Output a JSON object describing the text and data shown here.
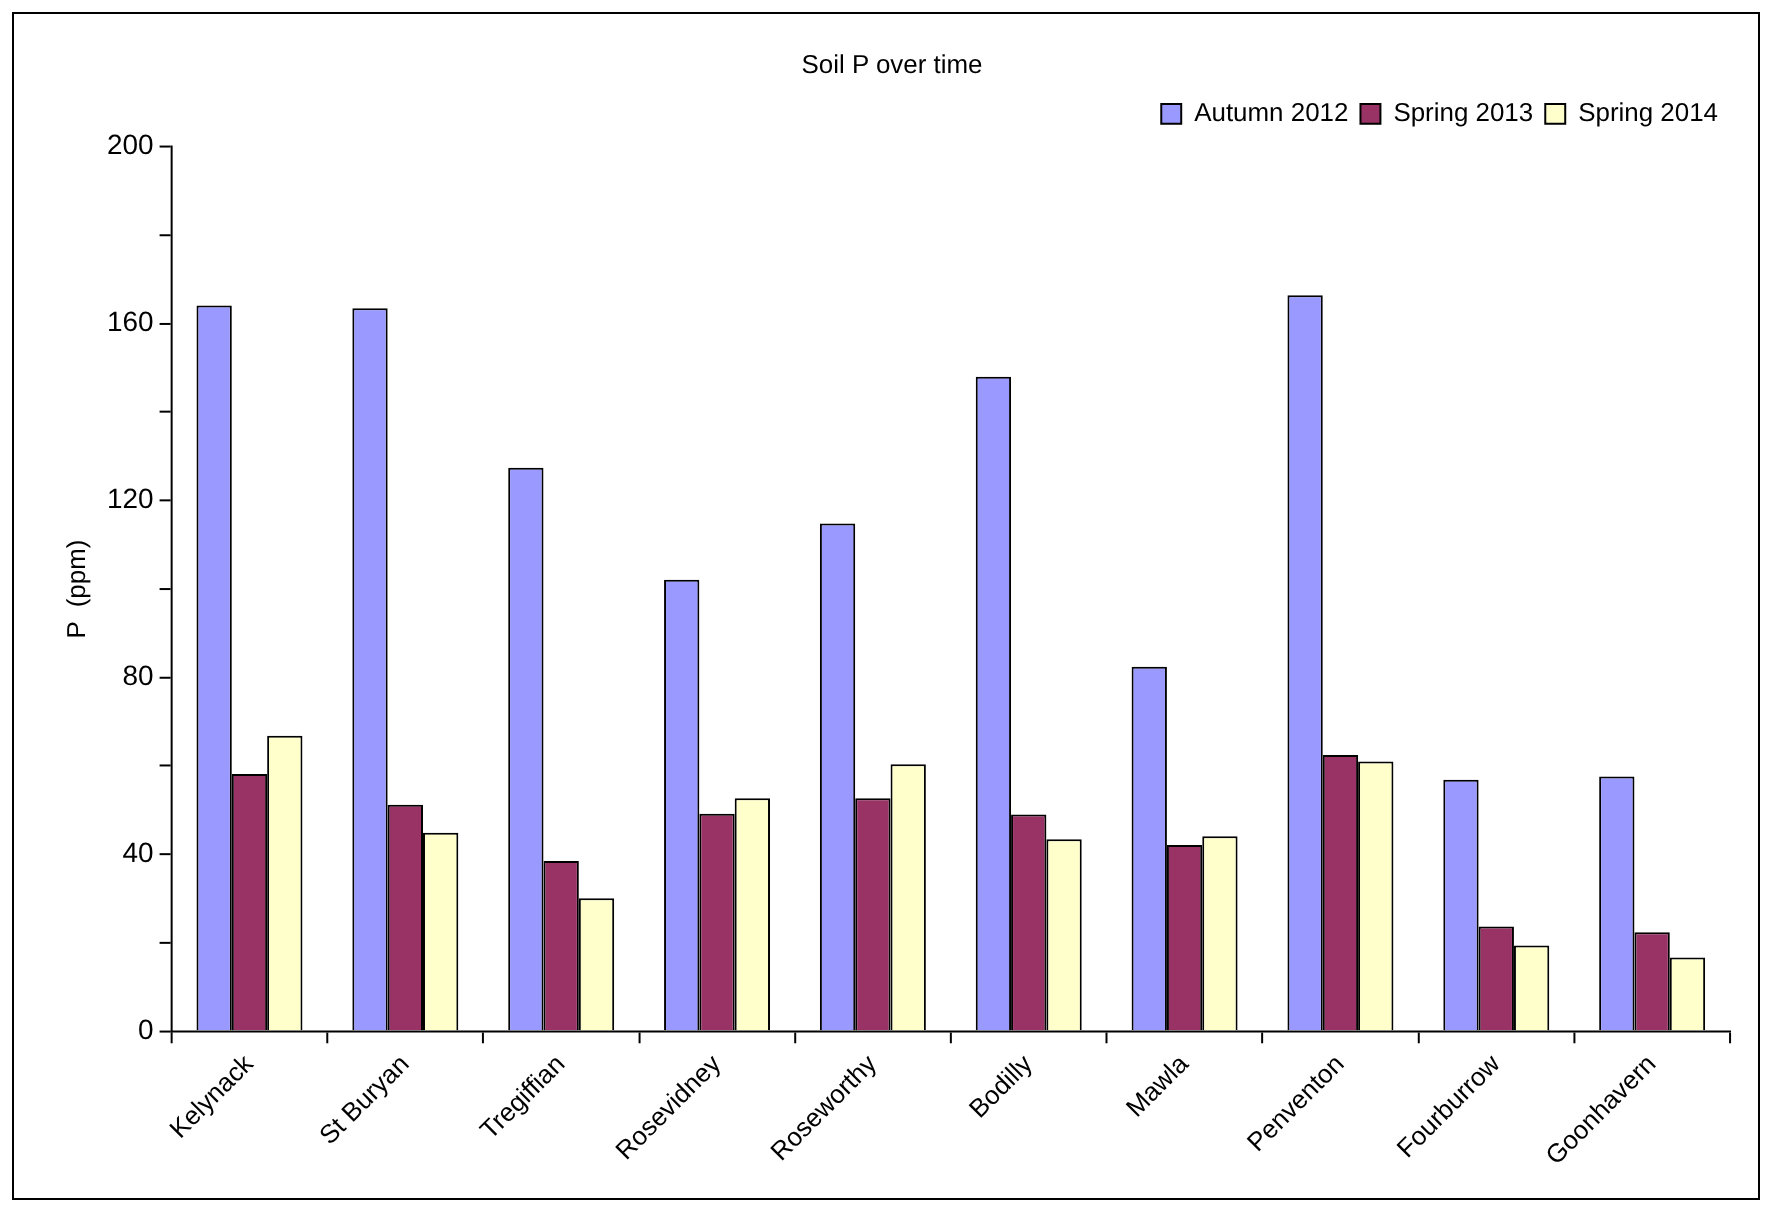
{
  "chart_data": {
    "type": "bar",
    "title": "Soil P over time",
    "ylabel": "P  (ppm)",
    "categories": [
      "Kelynack",
      "St Buryan",
      "Tregiffian",
      "Rosevidney",
      "Roseworthy",
      "Bodilly",
      "Mawla",
      "Penventon",
      "Fourburrow",
      "Goonhavern"
    ],
    "series": [
      {
        "name": "Autumn 2012",
        "color": "#9999ff",
        "values": [
          164.1,
          163.5,
          127.4,
          102.1,
          114.8,
          148.0,
          82.4,
          166.4,
          56.9,
          57.6
        ]
      },
      {
        "name": "Spring 2013",
        "color": "#993366",
        "values": [
          58.2,
          51.2,
          38.5,
          49.2,
          52.7,
          49.0,
          42.1,
          62.5,
          23.7,
          22.4
        ]
      },
      {
        "name": "Spring 2014",
        "color": "#ffffcc",
        "values": [
          66.8,
          44.9,
          30.1,
          52.7,
          60.4,
          43.4,
          44.1,
          61.0,
          19.4,
          16.7
        ]
      }
    ],
    "ylim": [
      0,
      200
    ],
    "yticks": [
      0,
      {
        "value": 20,
        "label": null
      },
      40,
      {
        "value": 60,
        "label": null
      },
      80,
      {
        "value": 100,
        "label": null
      },
      120,
      {
        "value": 140,
        "label": null
      },
      160,
      {
        "value": 180,
        "label": null
      },
      200
    ],
    "grid": false,
    "legend": "top right"
  }
}
